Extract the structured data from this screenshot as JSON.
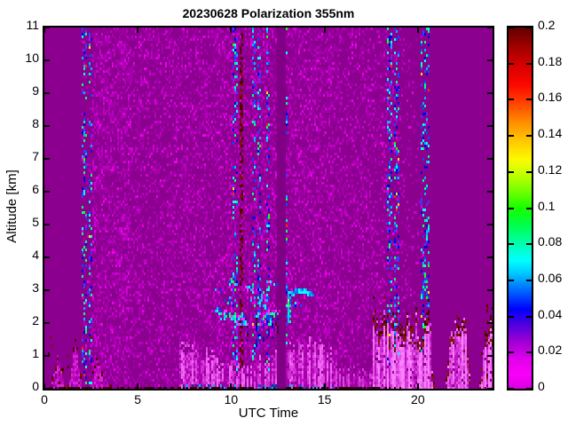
{
  "figure": {
    "title": "20230628 Polarization 355nm",
    "xlabel": "UTC Time",
    "ylabel": "Altitude [km]"
  },
  "chart_data": {
    "type": "heatmap",
    "title": "20230628 Polarization 355nm",
    "xlabel": "UTC Time",
    "ylabel": "Altitude [km]",
    "content_summary": "Lidar volume depolarization ratio time-height plot for 2023-06-28 at 355 nm; mostly low values (~0.02, magenta/purple) with speckle noise between 02:00 and 20:30 UTC, a data gap near 12:40 UTC, low clouds at 2-3 km between 09:00 and 14:30 UTC, and an aerosol boundary layer below ~2 km after 17:30 UTC with high-depolarization (dark red) tops",
    "x_range": [
      0,
      24
    ],
    "y_range": [
      0,
      11
    ],
    "grid": false,
    "x_tick_values": [
      0,
      5,
      10,
      15,
      20
    ],
    "x_tick_labels": [
      "0",
      "5",
      "10",
      "15",
      "20"
    ],
    "y_tick_values": [
      0,
      1,
      2,
      3,
      4,
      5,
      6,
      7,
      8,
      9,
      10,
      11
    ],
    "y_tick_labels": [
      "0",
      "1",
      "2",
      "3",
      "4",
      "5",
      "6",
      "7",
      "8",
      "9",
      "10",
      "11"
    ],
    "colorbar": {
      "min": 0,
      "max": 0.2,
      "tick_values": [
        0,
        0.02,
        0.04,
        0.06,
        0.08,
        0.1,
        0.12,
        0.14,
        0.16,
        0.18,
        0.2
      ],
      "tick_labels": [
        "0",
        "0.02",
        "0.04",
        "0.06",
        "0.08",
        "0.1",
        "0.12",
        "0.14",
        "0.16",
        "0.18",
        "0.2"
      ],
      "gradient_stops": [
        {
          "v": 0.0,
          "c": "#DA00E0"
        },
        {
          "v": 0.008,
          "c": "#FA00FA"
        },
        {
          "v": 0.016,
          "c": "#E300EC"
        },
        {
          "v": 0.026,
          "c": "#A000D4"
        },
        {
          "v": 0.036,
          "c": "#4A00DE"
        },
        {
          "v": 0.044,
          "c": "#0000FF"
        },
        {
          "v": 0.054,
          "c": "#0064FF"
        },
        {
          "v": 0.064,
          "c": "#00C8FF"
        },
        {
          "v": 0.071,
          "c": "#00FFFF"
        },
        {
          "v": 0.081,
          "c": "#00FFA8"
        },
        {
          "v": 0.091,
          "c": "#00FF46"
        },
        {
          "v": 0.1,
          "c": "#16FF00"
        },
        {
          "v": 0.11,
          "c": "#78FF00"
        },
        {
          "v": 0.12,
          "c": "#CCFF00"
        },
        {
          "v": 0.127,
          "c": "#FCFA00"
        },
        {
          "v": 0.138,
          "c": "#FFC400"
        },
        {
          "v": 0.148,
          "c": "#FF8A00"
        },
        {
          "v": 0.158,
          "c": "#FF4400"
        },
        {
          "v": 0.168,
          "c": "#FC0800"
        },
        {
          "v": 0.18,
          "c": "#D20000"
        },
        {
          "v": 0.19,
          "c": "#9E0000"
        },
        {
          "v": 0.2,
          "c": "#600000"
        }
      ]
    },
    "background_value_approx": 0.02,
    "features": {
      "background_color": "#8C0090",
      "gap_band": {
        "utc": [
          12.45,
          12.88
        ],
        "color": "#7F0084"
      },
      "noise_region": {
        "utc": [
          2.0,
          20.6
        ],
        "colors": [
          "#A400AA",
          "#BC00C2",
          "#D400D8",
          "#EE00EE"
        ]
      },
      "cool_columns": {
        "utc": [
          2.15,
          2.45,
          10.22,
          11.2,
          11.5,
          11.95,
          12.93,
          18.5,
          18.88,
          20.3,
          20.55
        ],
        "density": 0.27,
        "colors": [
          "#0000E6",
          "#0050FF",
          "#00B4FF",
          "#00FFFF",
          "#00FF80",
          "#3C3CFF"
        ],
        "accent_colors": [
          "#FF2800",
          "#FFE100",
          "#1EFF00"
        ],
        "accent_prob": 0.05
      },
      "maroon_line": {
        "utc": 10.55,
        "halfwidth": 0.055,
        "density": 0.5
      },
      "maroon_colors": [
        "#4A0000",
        "#600000",
        "#781400"
      ],
      "cloud_field": {
        "utc": [
          9.3,
          12.4
        ],
        "alt": [
          2.0,
          3.3
        ],
        "clusters": 26,
        "colors": [
          "#0040FF",
          "#00C0FF",
          "#00FFFF",
          "#00FF6E",
          "#2828DC"
        ],
        "bright_prob": 0.3,
        "bright_colors": [
          "#E800EC",
          "#FF30FF"
        ]
      },
      "virga": {
        "utc_list": [
          10.8,
          11.3,
          11.65,
          11.95,
          12.2,
          12.4
        ],
        "top_alt": 2.2,
        "colors": [
          "#2814B4",
          "#0000C8",
          "#3C00A0",
          "#460000"
        ]
      },
      "bright_plume": {
        "utc": [
          12.95,
          13.18
        ],
        "alt": [
          2.1,
          3.02
        ],
        "upper_colors": [
          "#00E6FF",
          "#00AAFF"
        ],
        "mid_colors": [
          "#46FF00",
          "#C8FF00",
          "#FFFF00",
          "#00FF64"
        ],
        "low_colors": [
          "#0050FF",
          "#00C8FF",
          "#00FF96"
        ],
        "arc": {
          "utc": [
            13.18,
            14.35
          ],
          "alt_base": 2.86,
          "alt_bump": 0.17,
          "colors": [
            "#00FFFF",
            "#00B4FF",
            "#0078FF"
          ]
        }
      },
      "bl_striping": {
        "utc": [
          7.25,
          17.6
        ],
        "dim_after": 15.6,
        "palette": [
          "#A402A8",
          "#B80ABC",
          "#CC2ED0",
          "#E048E2",
          "#F066F2"
        ],
        "dim_palette": [
          "#9C02A0",
          "#AC06B0",
          "#BE14C2",
          "#CC2ED0",
          "#DC48DE"
        ]
      },
      "bottom_dots": {
        "utc": [
          7.4,
          15.5
        ],
        "alt_max": 0.13,
        "density": 0.3,
        "colors": [
          "#0050C8",
          "#00B4FF",
          "#282896"
        ]
      },
      "bl_columns": {
        "utc": [
          17.6,
          24.0
        ],
        "h_base": 1.3,
        "h_rand": 0.95,
        "palette": [
          "#BE14C2",
          "#D232D6",
          "#E250E4",
          "#F06CF2",
          "#FA82FA"
        ],
        "gaps": [
          [
            20.9,
            21.45
          ],
          [
            22.85,
            23.3
          ]
        ],
        "top_maroon_colors": [
          "#5A1400",
          "#6E1E00",
          "#821E00",
          "#500000"
        ]
      },
      "right_edge_maroon": {
        "utc": [
          23.7,
          24.0
        ],
        "alt_max": 2.6,
        "density": 0.1
      },
      "plumes": [
        {
          "utc": [
            0.3,
            1.2
          ],
          "peak": 1.0
        },
        {
          "utc": [
            1.25,
            2.05
          ],
          "peak": 1.45
        },
        {
          "utc": [
            2.4,
            3.3
          ],
          "peak": 0.9
        }
      ],
      "plume_fill": [
        "#C20AC6",
        "#D428D8",
        "#B202B6"
      ],
      "scatter_maroon": {
        "utc_max": 3.8,
        "alt_max": 1.7,
        "density": 0.013
      },
      "ground_line": {
        "utc": [
          0,
          19.2
        ],
        "alt_max": 0.08,
        "density": 0.7,
        "colors": [
          "#460000",
          "#5A0000",
          "#320000",
          "#10104A"
        ]
      }
    }
  }
}
